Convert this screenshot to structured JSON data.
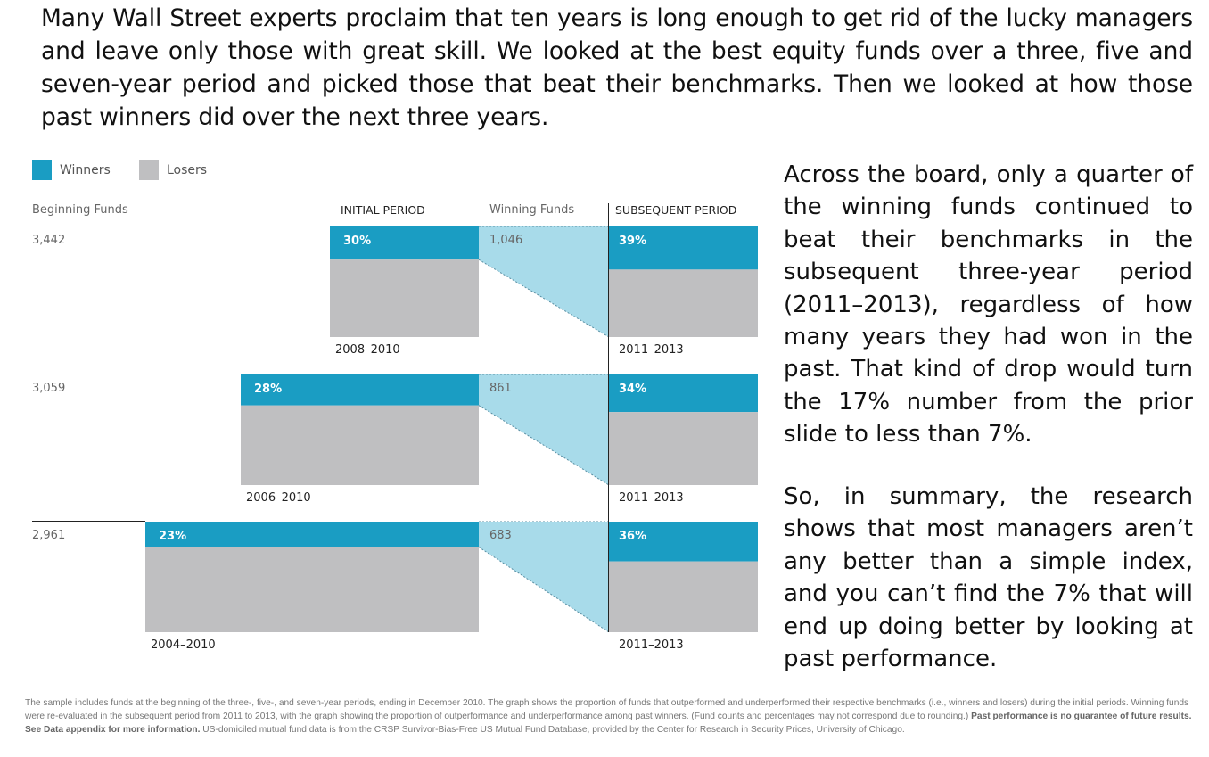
{
  "intro_text": "Many Wall Street experts proclaim that ten years is long enough to get rid of the lucky managers and leave only those with great skill. We looked at the best equity funds over a three, five and seven-year period and picked those that beat their benchmarks. Then we looked at how those past winners did over the next three years.",
  "legend": {
    "winners": "Winners",
    "losers": "Losers"
  },
  "colors": {
    "winners": "#1a9dc3",
    "losers": "#bfbfc1",
    "transition": "#a8dbea"
  },
  "column_headers": {
    "beginning_funds": "Beginning Funds",
    "initial_period": "INITIAL PERIOD",
    "winning_funds": "Winning Funds",
    "subsequent_period": "SUBSEQUENT PERIOD"
  },
  "chart_data": {
    "type": "bar",
    "rows": [
      {
        "beginning_funds": "3,442",
        "initial_winners_pct": 30,
        "initial_winners_label": "30%",
        "initial_period": "2008–2010",
        "winning_funds": "1,046",
        "subsequent_winners_pct": 39,
        "subsequent_winners_label": "39%",
        "subsequent_period": "2011–2013"
      },
      {
        "beginning_funds": "3,059",
        "initial_winners_pct": 28,
        "initial_winners_label": "28%",
        "initial_period": "2006–2010",
        "winning_funds": "861",
        "subsequent_winners_pct": 34,
        "subsequent_winners_label": "34%",
        "subsequent_period": "2011–2013"
      },
      {
        "beginning_funds": "2,961",
        "initial_winners_pct": 23,
        "initial_winners_label": "23%",
        "initial_period": "2004–2010",
        "winning_funds": "683",
        "subsequent_winners_pct": 36,
        "subsequent_winners_label": "36%",
        "subsequent_period": "2011–2013"
      }
    ]
  },
  "side_text": {
    "paragraph1": "Across the board, only a quarter of the winning funds continued to beat their benchmarks in the subsequent three-year period (2011–2013), regardless of how many years they had won in the past. That kind of drop would turn the 17% number from the prior slide to less than 7%.",
    "paragraph2": "So, in summary, the research shows that most managers aren’t any better than a simple index, and you can’t find the 7% that will end up doing better by looking at past performance."
  },
  "footnote": {
    "part1": "The sample includes funds at the beginning of the three-, five-, and seven-year periods, ending in December 2010. The graph shows the proportion of funds that outperformed and underperformed their respective benchmarks (i.e., winners and losers) during the initial periods. Winning funds were re-evaluated in the subsequent period from 2011 to 2013, with the graph showing the proportion of outperformance and underperformance among past winners. (Fund counts and percentages may not correspond due to rounding.)",
    "bold": "Past performance is no guarantee of future results. See Data appendix for more information.",
    "part2": "US-domiciled mutual fund data is from the CRSP Survivor-Bias-Free US Mutual Fund Database, provided by the Center for Research in Security Prices, University of Chicago."
  }
}
